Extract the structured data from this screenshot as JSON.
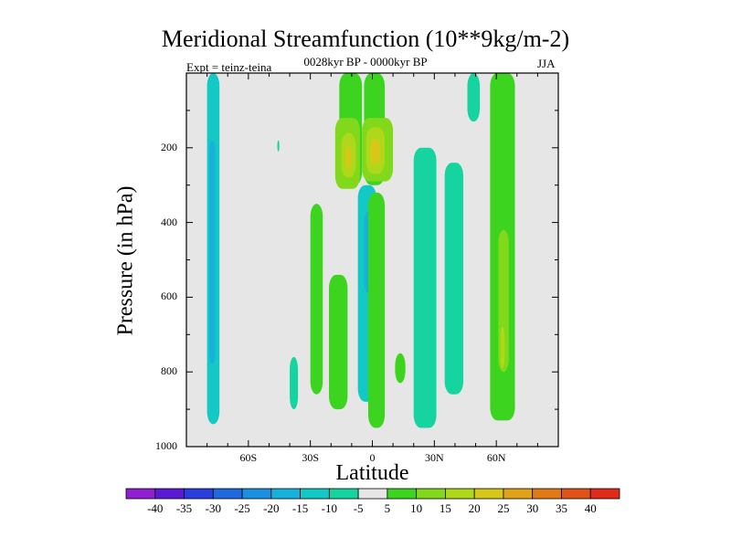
{
  "chart_data": {
    "type": "heatmap",
    "title": "Meridional Streamfunction (10**9kg/m-2)",
    "subtitle": "0028kyr BP - 0000kyr BP",
    "left_label": "Expt = teinz-teina",
    "right_label": "JJA",
    "xlabel": "Latitude",
    "ylabel": "Pressure (in hPa)",
    "x_range": [
      -90,
      90
    ],
    "y_range": [
      0,
      1000
    ],
    "y_reversed": true,
    "background_color": "#e6e6e6",
    "yticks": [
      {
        "value": 200,
        "label": "200"
      },
      {
        "value": 400,
        "label": "400"
      },
      {
        "value": 600,
        "label": "600"
      },
      {
        "value": 800,
        "label": "800"
      },
      {
        "value": 1000,
        "label": "1000"
      }
    ],
    "xticks": [
      {
        "value": -60,
        "label": "60S"
      },
      {
        "value": -30,
        "label": "30S"
      },
      {
        "value": 0,
        "label": "0"
      },
      {
        "value": 30,
        "label": "30N"
      },
      {
        "value": 60,
        "label": "60N"
      }
    ],
    "colorbar": {
      "labels": [
        "-40",
        "-35",
        "-30",
        "-25",
        "-20",
        "-15",
        "-10",
        "-5",
        "5",
        "10",
        "15",
        "20",
        "25",
        "30",
        "35",
        "40"
      ],
      "colors": [
        "#8f1fd0",
        "#5a1ad5",
        "#2a3ee0",
        "#1f68de",
        "#1a90e0",
        "#17b2db",
        "#12c9c6",
        "#15d4a0",
        "#e6e6e6",
        "#3dd41f",
        "#82d91c",
        "#b0d81a",
        "#d6c718",
        "#e0a317",
        "#e07a17",
        "#e05218",
        "#e02b1a"
      ]
    },
    "regions": [
      {
        "label": "-10",
        "lat": [
          -80,
          -74
        ],
        "p": [
          0,
          940
        ],
        "color": "#12c9c6"
      },
      {
        "label": "-20",
        "lat": [
          -79,
          -76
        ],
        "p": [
          180,
          780
        ],
        "color": "#17b2db"
      },
      {
        "label": "5",
        "lat": [
          -16,
          -5
        ],
        "p": [
          0,
          300
        ],
        "color": "#3dd41f"
      },
      {
        "label": "5",
        "lat": [
          -4,
          6
        ],
        "p": [
          0,
          300
        ],
        "color": "#3dd41f"
      },
      {
        "label": "10",
        "lat": [
          -18,
          -6
        ],
        "p": [
          120,
          310
        ],
        "color": "#82d91c"
      },
      {
        "label": "10",
        "lat": [
          -5,
          10
        ],
        "p": [
          120,
          290
        ],
        "color": "#82d91c"
      },
      {
        "label": "15",
        "lat": [
          -15,
          -8
        ],
        "p": [
          160,
          280
        ],
        "color": "#b0d81a"
      },
      {
        "label": "15",
        "lat": [
          -3,
          6
        ],
        "p": [
          145,
          270
        ],
        "color": "#b0d81a"
      },
      {
        "label": "20",
        "lat": [
          -13,
          -10
        ],
        "p": [
          195,
          255
        ],
        "color": "#d6c718"
      },
      {
        "label": "20",
        "lat": [
          -1,
          4
        ],
        "p": [
          175,
          245
        ],
        "color": "#d6c718"
      },
      {
        "label": "-10",
        "lat": [
          -7,
          2
        ],
        "p": [
          300,
          880
        ],
        "color": "#12c9c6"
      },
      {
        "label": "-15",
        "lat": [
          -4,
          0
        ],
        "p": [
          370,
          590
        ],
        "color": "#17b2db"
      },
      {
        "label": "5",
        "lat": [
          -30,
          -24
        ],
        "p": [
          350,
          860
        ],
        "color": "#3dd41f"
      },
      {
        "label": "5",
        "lat": [
          -21,
          -12
        ],
        "p": [
          540,
          900
        ],
        "color": "#3dd41f"
      },
      {
        "label": "5",
        "lat": [
          -2,
          6
        ],
        "p": [
          320,
          950
        ],
        "color": "#3dd41f"
      },
      {
        "label": "5",
        "lat": [
          11,
          16
        ],
        "p": [
          750,
          830
        ],
        "color": "#3dd41f"
      },
      {
        "label": "-5",
        "lat": [
          20,
          31
        ],
        "p": [
          200,
          950
        ],
        "color": "#15d4a0"
      },
      {
        "label": "-5",
        "lat": [
          35,
          44
        ],
        "p": [
          240,
          860
        ],
        "color": "#15d4a0"
      },
      {
        "label": "-5",
        "lat": [
          -40,
          -36
        ],
        "p": [
          760,
          900
        ],
        "color": "#15d4a0"
      },
      {
        "label": "-5",
        "lat": [
          46,
          52
        ],
        "p": [
          0,
          130
        ],
        "color": "#15d4a0"
      },
      {
        "label": "-5",
        "lat": [
          -46,
          -45
        ],
        "p": [
          180,
          210
        ],
        "color": "#15d4a0"
      },
      {
        "label": "5",
        "lat": [
          57,
          69
        ],
        "p": [
          0,
          930
        ],
        "color": "#3dd41f"
      },
      {
        "label": "10",
        "lat": [
          61,
          66
        ],
        "p": [
          420,
          800
        ],
        "color": "#82d91c"
      },
      {
        "label": "15",
        "lat": [
          62,
          64
        ],
        "p": [
          680,
          790
        ],
        "color": "#b0d81a"
      }
    ]
  }
}
